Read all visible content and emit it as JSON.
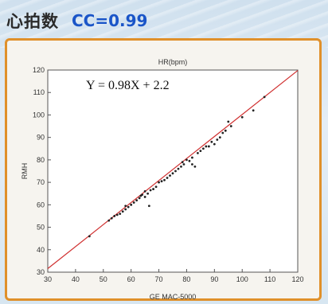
{
  "header": {
    "title": "心拍数",
    "cc": "CC=0.99"
  },
  "colors": {
    "frame": "#e0902a",
    "fit_line": "#d03030",
    "points": "#222222",
    "cc_text": "#1a55c8"
  },
  "chart_data": {
    "type": "scatter",
    "title": "HR(bpm)",
    "xlabel": "GE MAC-5000",
    "ylabel": "RMH",
    "xlim": [
      30,
      120
    ],
    "ylim": [
      30,
      120
    ],
    "xticks": [
      30,
      40,
      50,
      60,
      70,
      80,
      90,
      100,
      110,
      120
    ],
    "yticks": [
      30,
      40,
      50,
      60,
      70,
      80,
      90,
      100,
      110,
      120
    ],
    "grid": false,
    "annotation": "Y = 0.98X + 2.2",
    "fit": {
      "slope": 0.98,
      "intercept": 2.2
    },
    "series": [
      {
        "points": [
          [
            45,
            46
          ],
          [
            52,
            53
          ],
          [
            53,
            54
          ],
          [
            54,
            55
          ],
          [
            55,
            55.5
          ],
          [
            56,
            56
          ],
          [
            57,
            57
          ],
          [
            58,
            58
          ],
          [
            58,
            59.5
          ],
          [
            59,
            59
          ],
          [
            60,
            60
          ],
          [
            61,
            61
          ],
          [
            62,
            62
          ],
          [
            63,
            63
          ],
          [
            63.5,
            64
          ],
          [
            64,
            64.5
          ],
          [
            65,
            63.5
          ],
          [
            65,
            66
          ],
          [
            66,
            65
          ],
          [
            66.5,
            59.5
          ],
          [
            67,
            66.5
          ],
          [
            68,
            67
          ],
          [
            69,
            68
          ],
          [
            70,
            70
          ],
          [
            71,
            70.5
          ],
          [
            72,
            71
          ],
          [
            73,
            72
          ],
          [
            74,
            73
          ],
          [
            75,
            74
          ],
          [
            76,
            75
          ],
          [
            77,
            76
          ],
          [
            78,
            77
          ],
          [
            78.5,
            79
          ],
          [
            79,
            78
          ],
          [
            80,
            80
          ],
          [
            81,
            79.5
          ],
          [
            82,
            81
          ],
          [
            82,
            78
          ],
          [
            83,
            77
          ],
          [
            84,
            83
          ],
          [
            85,
            84
          ],
          [
            86,
            85
          ],
          [
            87,
            86
          ],
          [
            88,
            86
          ],
          [
            89,
            88
          ],
          [
            90,
            87
          ],
          [
            91,
            89
          ],
          [
            92,
            90
          ],
          [
            93,
            92
          ],
          [
            94,
            93
          ],
          [
            95,
            97
          ],
          [
            96,
            95
          ],
          [
            100,
            99
          ],
          [
            104,
            102
          ],
          [
            108,
            108
          ]
        ]
      }
    ]
  }
}
